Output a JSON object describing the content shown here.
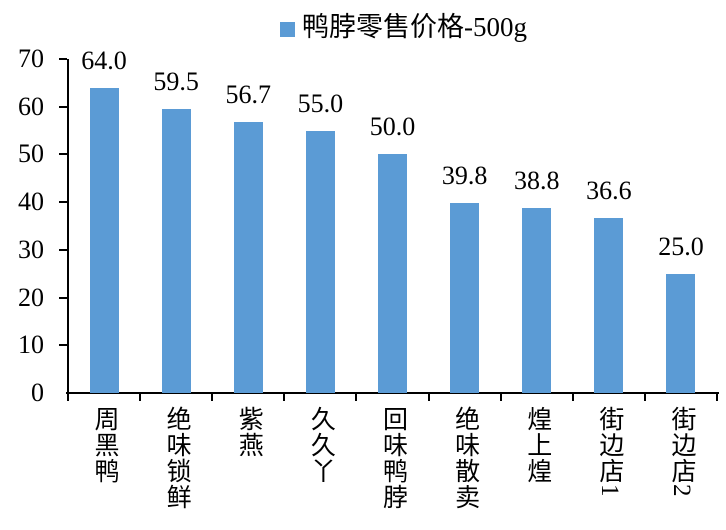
{
  "legend": {
    "label": "鸭脖零售价格-500g",
    "marker_color": "#5b9bd5"
  },
  "chart_data": {
    "type": "bar",
    "title": "",
    "series_name": "鸭脖零售价格-500g",
    "categories": [
      "周黑鸭",
      "绝味锁鲜",
      "紫燕",
      "久久丫",
      "回味鸭脖",
      "绝味散卖",
      "煌上煌",
      "街边店1",
      "街边店2"
    ],
    "values": [
      64.0,
      59.5,
      56.7,
      55.0,
      50.0,
      39.8,
      38.8,
      36.6,
      25.0
    ],
    "value_labels": [
      "64.0",
      "59.5",
      "56.7",
      "55.0",
      "50.0",
      "39.8",
      "38.8",
      "36.6",
      "25.0"
    ],
    "xlabel": "",
    "ylabel": "",
    "ylim": [
      0,
      70
    ],
    "yticks": [
      0,
      10,
      20,
      30,
      40,
      50,
      60,
      70
    ],
    "bar_color": "#5b9bd5",
    "axis_color": "#000000",
    "text_color": "#000000",
    "background": "#ffffff",
    "legend_position": "top-center",
    "grid": false
  }
}
